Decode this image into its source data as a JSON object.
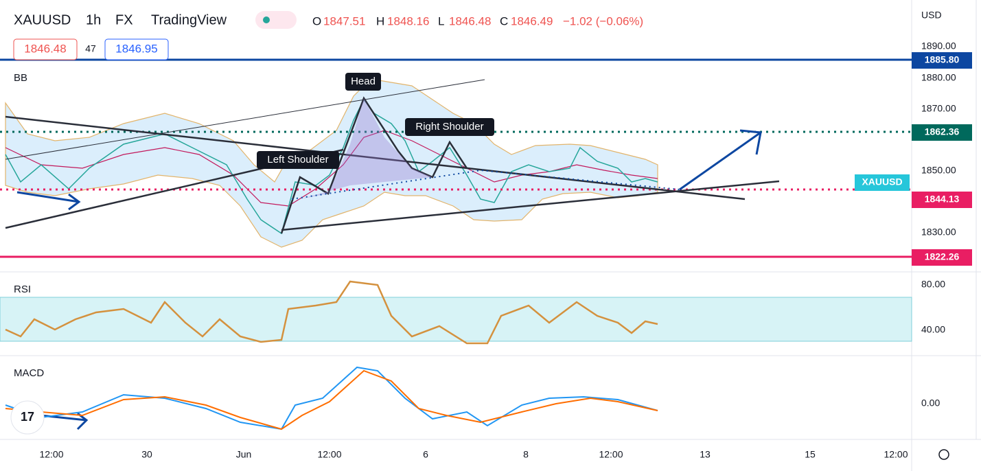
{
  "header": {
    "symbol": "XAUUSD",
    "interval": "1h",
    "exchange": "FX",
    "source": "TradingView",
    "ohlc": [
      {
        "label": "O",
        "value": "1847.51"
      },
      {
        "label": "H",
        "value": "1848.16"
      },
      {
        "label": "L",
        "value": "1846.48"
      },
      {
        "label": "C",
        "value": "1846.49"
      }
    ],
    "change": "−1.02 (−0.06%)",
    "bid": "1846.48",
    "spread": "47",
    "ask": "1846.95"
  },
  "price_axis": {
    "currency": "USD",
    "ticks": [
      "1890.00",
      "1880.00",
      "1870.00",
      "1850.00",
      "1830.00"
    ],
    "tags": {
      "resistance": "1885.80",
      "target": "1862.36",
      "symbol": "XAUUSD",
      "current": "1844.13",
      "support": "1822.26"
    }
  },
  "annotations": {
    "indicator": "BB",
    "head": "Head",
    "left_shoulder": "Left Shoulder",
    "right_shoulder": "Right Shoulder"
  },
  "rsi": {
    "label": "RSI",
    "ticks": [
      "80.00",
      "40.00"
    ]
  },
  "macd": {
    "label": "MACD",
    "ticks": [
      "0.00"
    ]
  },
  "time_axis": [
    "12:00",
    "30",
    "Jun",
    "12:00",
    "6",
    "8",
    "12:00",
    "13",
    "15",
    "12:00"
  ]
}
